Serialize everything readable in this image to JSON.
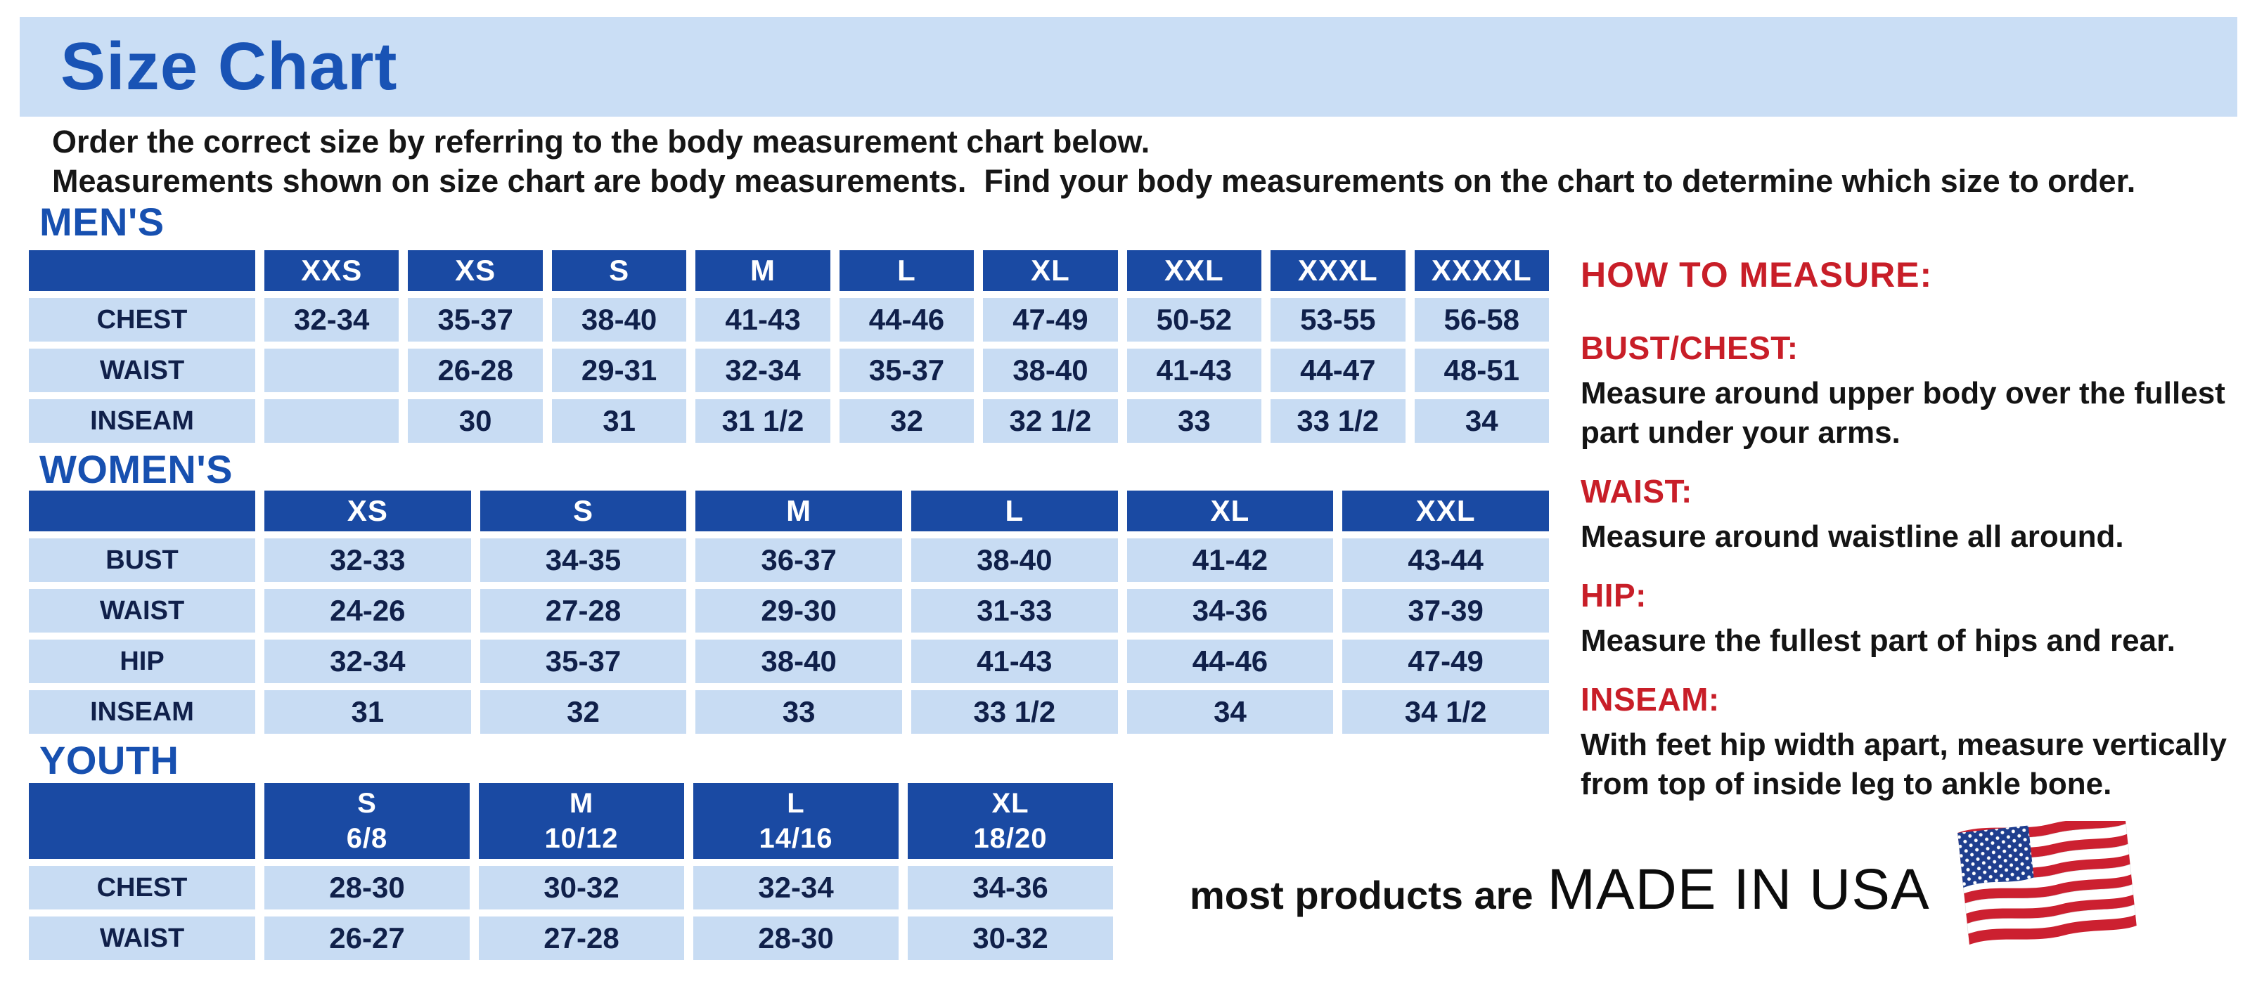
{
  "page": {
    "title": "Size Chart",
    "intro_line1": "Order the correct size by referring to the body measurement chart below.",
    "intro_line2": "Measurements shown on size chart are body measurements.  Find your body measurements on the chart to determine which size to order."
  },
  "colors": {
    "banner_bg": "#cadef5",
    "title_blue": "#1953b5",
    "section_blue": "#1750b0",
    "table_header_blue": "#1a4aa3",
    "table_cell_blue": "#c8dcf3",
    "heading_red": "#c81e28",
    "flag_red": "#cc2030",
    "flag_blue": "#1f3e8e"
  },
  "tables": {
    "mens": {
      "section_label": "MEN'S",
      "columns": [
        "XXS",
        "XS",
        "S",
        "M",
        "L",
        "XL",
        "XXL",
        "XXXL",
        "XXXXL"
      ],
      "rows": [
        {
          "label": "CHEST",
          "values": [
            "32-34",
            "35-37",
            "38-40",
            "41-43",
            "44-46",
            "47-49",
            "50-52",
            "53-55",
            "56-58"
          ]
        },
        {
          "label": "WAIST",
          "values": [
            "",
            "26-28",
            "29-31",
            "32-34",
            "35-37",
            "38-40",
            "41-43",
            "44-47",
            "48-51"
          ]
        },
        {
          "label": "INSEAM",
          "values": [
            "",
            "30",
            "31",
            "31 1/2",
            "32",
            "32 1/2",
            "33",
            "33 1/2",
            "34"
          ]
        }
      ]
    },
    "womens": {
      "section_label": "WOMEN'S",
      "columns": [
        "XS",
        "S",
        "M",
        "L",
        "XL",
        "XXL"
      ],
      "rows": [
        {
          "label": "BUST",
          "values": [
            "32-33",
            "34-35",
            "36-37",
            "38-40",
            "41-42",
            "43-44"
          ]
        },
        {
          "label": "WAIST",
          "values": [
            "24-26",
            "27-28",
            "29-30",
            "31-33",
            "34-36",
            "37-39"
          ]
        },
        {
          "label": "HIP",
          "values": [
            "32-34",
            "35-37",
            "38-40",
            "41-43",
            "44-46",
            "47-49"
          ]
        },
        {
          "label": "INSEAM",
          "values": [
            "31",
            "32",
            "33",
            "33 1/2",
            "34",
            "34 1/2"
          ]
        }
      ]
    },
    "youth": {
      "section_label": "YOUTH",
      "columns": [
        "S\n6/8",
        "M\n10/12",
        "L\n14/16",
        "XL\n18/20"
      ],
      "rows": [
        {
          "label": "CHEST",
          "values": [
            "28-30",
            "30-32",
            "32-34",
            "34-36"
          ]
        },
        {
          "label": "WAIST",
          "values": [
            "26-27",
            "27-28",
            "28-30",
            "30-32"
          ]
        }
      ]
    }
  },
  "how_to_measure": {
    "title": "HOW TO MEASURE:",
    "sections": [
      {
        "heading": "BUST/CHEST:",
        "text": "Measure around upper body over the fullest part under your arms."
      },
      {
        "heading": "WAIST:",
        "text": "Measure around waistline all around."
      },
      {
        "heading": "HIP:",
        "text": "Measure the fullest part of hips and rear."
      },
      {
        "heading": "INSEAM:",
        "text": "With feet hip width apart, measure vertically from top of inside leg to ankle bone."
      }
    ]
  },
  "footer": {
    "prefix": "most products are",
    "emphasis": "MADE IN USA",
    "flag_icon": "usa-flag-icon"
  }
}
